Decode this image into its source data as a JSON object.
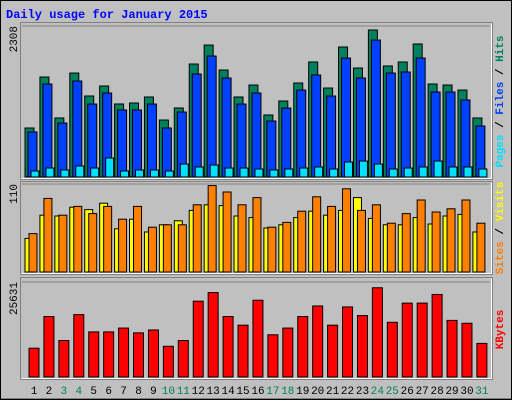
{
  "title": "Daily usage for January 2015",
  "legend_separator": " / ",
  "chart_data": [
    {
      "type": "bar",
      "ylim": [
        0,
        2308
      ],
      "yticks": [
        2308
      ],
      "grid": true,
      "series": [
        {
          "name": "Hits",
          "color": "#00805c",
          "values": [
            749,
            1528,
            902,
            1589,
            1238,
            1391,
            1116,
            1131,
            1223,
            871,
            1055,
            1727,
            2017,
            1635,
            1223,
            1406,
            948,
            1162,
            1437,
            1758,
            1360,
            1987,
            1666,
            2247,
            1697,
            1758,
            2033,
            1422,
            1406,
            1329,
            902
          ]
        },
        {
          "name": "Files",
          "color": "#0040ff",
          "values": [
            688,
            1421,
            825,
            1467,
            1115,
            1284,
            1024,
            1024,
            1115,
            749,
            993,
            1574,
            1849,
            1513,
            1115,
            1284,
            856,
            1054,
            1329,
            1559,
            1238,
            1818,
            1513,
            2093,
            1589,
            1605,
            1818,
            1299,
            1299,
            1177,
            779
          ]
        },
        {
          "name": "Pages",
          "color": "#00e0ff",
          "values": [
            92,
            137,
            107,
            168,
            137,
            290,
            92,
            107,
            107,
            92,
            198,
            153,
            183,
            137,
            137,
            122,
            107,
            122,
            137,
            153,
            122,
            229,
            244,
            198,
            122,
            137,
            153,
            244,
            153,
            153,
            122
          ]
        }
      ]
    },
    {
      "type": "bar",
      "ylim": [
        0,
        110
      ],
      "yticks": [
        110
      ],
      "grid": true,
      "series": [
        {
          "name": "Visits",
          "color": "#ffff00",
          "values": [
            42,
            71,
            70,
            81,
            78,
            86,
            54,
            66,
            50,
            59,
            64,
            77,
            84,
            83,
            70,
            68,
            55,
            59,
            68,
            76,
            71,
            77,
            93,
            67,
            59,
            59,
            68,
            60,
            70,
            72,
            50
          ]
        },
        {
          "name": "Sites",
          "color": "#ff8000",
          "values": [
            48,
            92,
            71,
            82,
            73,
            82,
            66,
            82,
            56,
            59,
            59,
            84,
            108,
            100,
            84,
            93,
            56,
            62,
            76,
            94,
            82,
            104,
            77,
            84,
            61,
            73,
            90,
            75,
            79,
            90,
            61
          ]
        }
      ]
    },
    {
      "type": "bar",
      "ylim": [
        0,
        25631
      ],
      "yticks": [
        25631
      ],
      "grid": true,
      "categories": [
        "1",
        "2",
        "3",
        "4",
        "5",
        "6",
        "7",
        "8",
        "9",
        "10",
        "11",
        "12",
        "13",
        "14",
        "15",
        "16",
        "17",
        "18",
        "19",
        "20",
        "21",
        "22",
        "23",
        "24",
        "25",
        "26",
        "27",
        "28",
        "29",
        "30",
        "31"
      ],
      "category_colors": [
        "#000000",
        "#000000",
        "#00805c",
        "#00805c",
        "#000000",
        "#000000",
        "#000000",
        "#000000",
        "#000000",
        "#00805c",
        "#00805c",
        "#000000",
        "#000000",
        "#000000",
        "#000000",
        "#000000",
        "#00805c",
        "#00805c",
        "#000000",
        "#000000",
        "#000000",
        "#000000",
        "#000000",
        "#00805c",
        "#00805c",
        "#000000",
        "#000000",
        "#000000",
        "#000000",
        "#000000",
        "#00805c"
      ],
      "series": [
        {
          "name": "KBytes",
          "color": "#ff0000",
          "values": [
            7767,
            16311,
            9838,
            16829,
            12168,
            12168,
            13204,
            11909,
            12686,
            8285,
            9838,
            20453,
            22783,
            16311,
            13981,
            20712,
            11392,
            13204,
            16311,
            19159,
            13981,
            18900,
            16570,
            24078,
            14757,
            19935,
            19935,
            22265,
            15275,
            14498,
            9062
          ]
        }
      ]
    }
  ]
}
